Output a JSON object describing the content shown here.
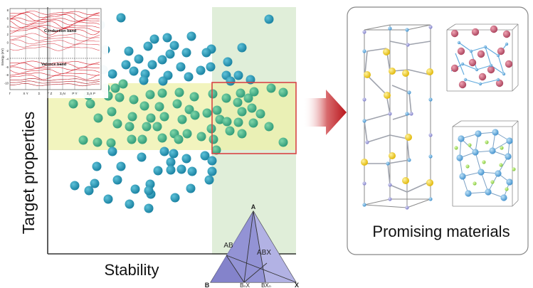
{
  "figure": {
    "y_axis_label": "Target properties",
    "x_axis_label": "Stability",
    "result_label": "Promising materials"
  },
  "band_inset": {
    "conduction_label": "Conduction band",
    "valence_label": "Valence band",
    "y_axis_label": "Energy (eV)",
    "y_ticks": [
      "8",
      "6",
      "4",
      "2",
      "0",
      "-2",
      "-4",
      "-6",
      "-8",
      "-10"
    ],
    "k_points": [
      "Γ",
      "X Y",
      "Σ",
      "Γ Z",
      "Σ₁N",
      "P Y",
      "Σ₁X P"
    ]
  },
  "phase_triangle": {
    "vertex_top": "A",
    "vertex_left": "B",
    "vertex_right": "X",
    "edge_left_label": "AB",
    "interior_label": "ABX",
    "bottom_left_label": "BₙX",
    "bottom_right_label": "BXₙ"
  },
  "colors": {
    "highlight_box": "#d84545",
    "stable_band": "#c9dfbf",
    "property_band": "#e6eba0",
    "dot_teal": "#1f8fb0",
    "dot_green": "#3fae84",
    "arrow": "#c0292e",
    "atom_pink": "#c65a72",
    "atom_gold": "#f2d21a",
    "atom_blue": "#5fa9dd",
    "atom_lavender": "#9a9ad8"
  }
}
